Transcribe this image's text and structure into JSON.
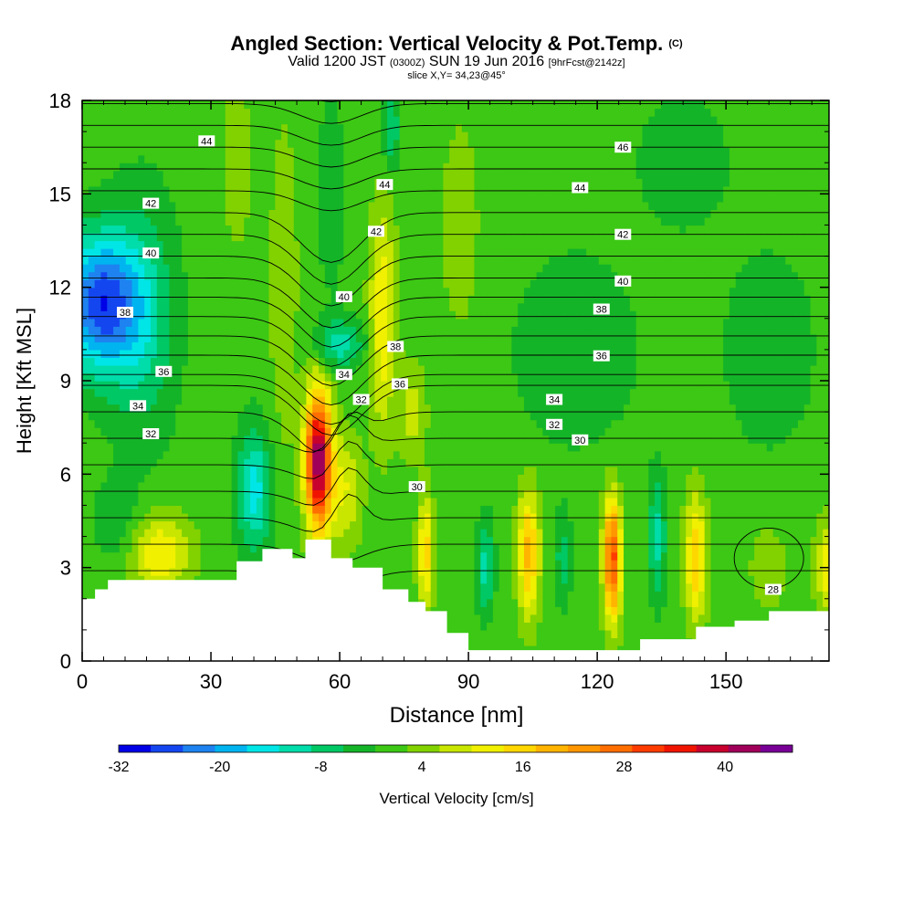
{
  "header": {
    "title_main": "Angled Section: Vertical Velocity & Pot.Temp.",
    "title_units": "(C)",
    "valid_a": "Valid 1200 JST",
    "valid_b": "(0300Z)",
    "valid_c": "SUN 19 Jun 2016",
    "valid_d": "[9hrFcst@2142z]",
    "slice": "slice X,Y= 34,23@45°"
  },
  "chart_data": {
    "type": "heatmap",
    "title": "Angled Section: Vertical Velocity & Pot.Temp. (C)",
    "xlabel": "Distance [nm]",
    "ylabel": "Height [Kft MSL]",
    "xlim": [
      0,
      174
    ],
    "ylim": [
      0,
      18
    ],
    "x_ticks": [
      0,
      30,
      60,
      90,
      120,
      150
    ],
    "y_ticks": [
      0,
      3,
      6,
      9,
      12,
      15,
      18
    ],
    "grid": false,
    "colorbar": {
      "label": "Vertical Velocity [cm/s]",
      "tick_labels": [
        "-32",
        "-20",
        "-8",
        "4",
        "16",
        "28",
        "40"
      ],
      "min": -32,
      "max": 48,
      "step": 4,
      "colors": [
        "#0000e6",
        "#1446f0",
        "#1e82f0",
        "#00b4f0",
        "#00e6e6",
        "#00dcaa",
        "#00c864",
        "#14b428",
        "#3cc814",
        "#82d200",
        "#c8e600",
        "#f0f000",
        "#ffd700",
        "#ffb400",
        "#ff9600",
        "#ff6e00",
        "#ff3c00",
        "#f01400",
        "#c8002d",
        "#a0005a",
        "#780096"
      ]
    },
    "background_value": 2,
    "velocity_features": [
      {
        "x": 4,
        "z": 11.5,
        "sx": 9,
        "sz": 2.2,
        "v": -28
      },
      {
        "x": 14,
        "z": 11,
        "sx": 8,
        "sz": 4,
        "v": -10
      },
      {
        "x": 18,
        "z": 3.5,
        "sx": 7,
        "sz": 1.2,
        "v": 14
      },
      {
        "x": 8,
        "z": 4.5,
        "sx": 5,
        "sz": 1.3,
        "v": -6
      },
      {
        "x": 40,
        "z": 5.5,
        "sx": 4,
        "sz": 2,
        "v": -16
      },
      {
        "x": 47,
        "z": 12,
        "sx": 3,
        "sz": 5,
        "v": 6
      },
      {
        "x": 36,
        "z": 16,
        "sx": 3,
        "sz": 2.5,
        "v": 6
      },
      {
        "x": 55,
        "z": 6.5,
        "sx": 3,
        "sz": 2.2,
        "v": 46
      },
      {
        "x": 61,
        "z": 5.5,
        "sx": 4,
        "sz": 1.8,
        "v": 10
      },
      {
        "x": 60,
        "z": 10.2,
        "sx": 6,
        "sz": 0.8,
        "v": -12
      },
      {
        "x": 70,
        "z": 11,
        "sx": 3,
        "sz": 3.5,
        "v": 14
      },
      {
        "x": 77,
        "z": 8,
        "sx": 3,
        "sz": 1.5,
        "v": 8
      },
      {
        "x": 72,
        "z": 17,
        "sx": 2,
        "sz": 1.3,
        "v": -10
      },
      {
        "x": 58,
        "z": 15,
        "sx": 3,
        "sz": 3,
        "v": -6
      },
      {
        "x": 80,
        "z": 3.5,
        "sx": 1.8,
        "sz": 1.8,
        "v": 16
      },
      {
        "x": 94,
        "z": 3,
        "sx": 2,
        "sz": 1.5,
        "v": -12
      },
      {
        "x": 104,
        "z": 3.5,
        "sx": 2.5,
        "sz": 2,
        "v": 20
      },
      {
        "x": 112,
        "z": 3.3,
        "sx": 2,
        "sz": 1.5,
        "v": -8
      },
      {
        "x": 123.5,
        "z": 3.3,
        "sx": 2,
        "sz": 2,
        "v": 32
      },
      {
        "x": 134,
        "z": 4,
        "sx": 2,
        "sz": 2,
        "v": -12
      },
      {
        "x": 143,
        "z": 3.3,
        "sx": 2.5,
        "sz": 2,
        "v": 18
      },
      {
        "x": 160,
        "z": 3,
        "sx": 4,
        "sz": 1.2,
        "v": 6
      },
      {
        "x": 115,
        "z": 10,
        "sx": 14,
        "sz": 3,
        "v": -6
      },
      {
        "x": 160,
        "z": 10,
        "sx": 10,
        "sz": 3,
        "v": -6
      },
      {
        "x": 140,
        "z": 16,
        "sx": 10,
        "sz": 2,
        "v": -6
      },
      {
        "x": 88,
        "z": 14,
        "sx": 4,
        "sz": 3,
        "v": 6
      },
      {
        "x": 174,
        "z": 3,
        "sx": 3,
        "sz": 1.5,
        "v": 14
      }
    ],
    "terrain": [
      [
        0,
        2
      ],
      [
        3,
        2
      ],
      [
        3,
        2.3
      ],
      [
        6,
        2.3
      ],
      [
        6,
        2.6
      ],
      [
        36,
        2.6
      ],
      [
        36,
        3.2
      ],
      [
        42,
        3.2
      ],
      [
        42,
        3.6
      ],
      [
        49,
        3.6
      ],
      [
        49,
        3.3
      ],
      [
        52,
        3.3
      ],
      [
        52,
        3.9
      ],
      [
        58,
        3.9
      ],
      [
        58,
        3.3
      ],
      [
        63,
        3.3
      ],
      [
        63,
        3.0
      ],
      [
        70,
        3.0
      ],
      [
        70,
        2.3
      ],
      [
        76,
        2.3
      ],
      [
        76,
        1.9
      ],
      [
        80,
        1.9
      ],
      [
        80,
        1.6
      ],
      [
        85,
        1.6
      ],
      [
        85,
        0.9
      ],
      [
        90,
        0.9
      ],
      [
        90,
        0.35
      ],
      [
        130,
        0.35
      ],
      [
        130,
        0.7
      ],
      [
        143,
        0.7
      ],
      [
        143,
        1.1
      ],
      [
        152,
        1.1
      ],
      [
        152,
        1.3
      ],
      [
        160,
        1.3
      ],
      [
        160,
        1.6
      ],
      [
        174,
        1.6
      ],
      [
        174,
        0
      ],
      [
        0,
        0
      ]
    ],
    "contour_labels": [
      {
        "text": "46",
        "x": 126,
        "z": 16.5
      },
      {
        "text": "44",
        "x": 29,
        "z": 16.7
      },
      {
        "text": "44",
        "x": 70.5,
        "z": 15.3
      },
      {
        "text": "44",
        "x": 116,
        "z": 15.2
      },
      {
        "text": "42",
        "x": 16,
        "z": 14.7
      },
      {
        "text": "42",
        "x": 68.5,
        "z": 13.8
      },
      {
        "text": "42",
        "x": 126,
        "z": 13.7
      },
      {
        "text": "40",
        "x": 16,
        "z": 13.1
      },
      {
        "text": "40",
        "x": 61,
        "z": 11.7
      },
      {
        "text": "40",
        "x": 126,
        "z": 12.2
      },
      {
        "text": "38",
        "x": 10,
        "z": 11.2
      },
      {
        "text": "38",
        "x": 121,
        "z": 11.3
      },
      {
        "text": "38",
        "x": 73,
        "z": 10.1
      },
      {
        "text": "36",
        "x": 19,
        "z": 9.3
      },
      {
        "text": "36",
        "x": 121,
        "z": 9.8
      },
      {
        "text": "36",
        "x": 74,
        "z": 8.9
      },
      {
        "text": "34",
        "x": 61,
        "z": 9.2
      },
      {
        "text": "34",
        "x": 13,
        "z": 8.2
      },
      {
        "text": "34",
        "x": 110,
        "z": 8.4
      },
      {
        "text": "32",
        "x": 65,
        "z": 8.4
      },
      {
        "text": "32",
        "x": 16,
        "z": 7.3
      },
      {
        "text": "32",
        "x": 110,
        "z": 7.6
      },
      {
        "text": "30",
        "x": 116,
        "z": 7.1
      },
      {
        "text": "30",
        "x": 78,
        "z": 5.6
      },
      {
        "text": "28",
        "x": 161,
        "z": 2.3
      }
    ]
  }
}
